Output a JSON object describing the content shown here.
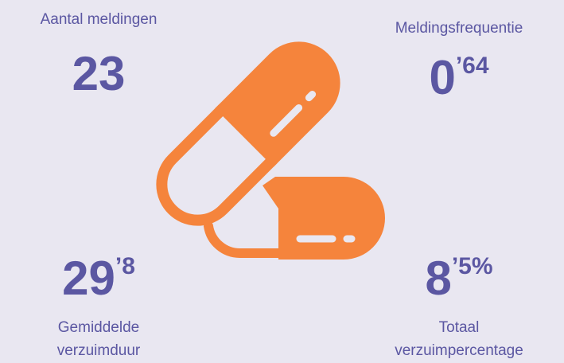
{
  "stats": [
    {
      "label": [
        "Aantal meldingen"
      ],
      "value": "23",
      "sup": null
    },
    {
      "label": [
        "Meldingsfrequentie"
      ],
      "value": "0",
      "sup": "’64"
    },
    {
      "label": [
        "Gemiddelde",
        "verzuimduur"
      ],
      "value": "29",
      "sup": "’8"
    },
    {
      "label": [
        "Totaal",
        "verzuimpercentage"
      ],
      "value": "8",
      "sup": "’5%"
    }
  ]
}
